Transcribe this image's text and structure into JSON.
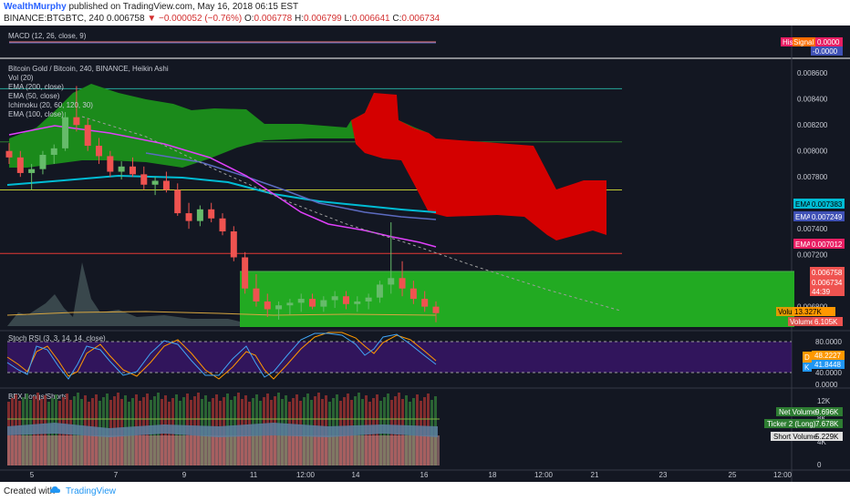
{
  "header": {
    "user": "WealthMurphy",
    "published": "published on TradingView.com, May 16, 2018 06:15 EST",
    "symbol": "BINANCE:BTGBTC, 240",
    "price": "0.006758",
    "change": "−0.000052 (−0.76%)",
    "o_label": "O:",
    "o_value": "0.006778",
    "h_label": "H:",
    "h_value": "0.006799",
    "l_label": "L:",
    "l_value": "0.006641",
    "c_label": "C:",
    "c_value": "0.006734"
  },
  "panes": {
    "macd": {
      "title": "MACD (12, 26, close, 9)",
      "hist_label": "His",
      "signal_label": "Signal",
      "value1": "0.0000",
      "value2": "-0.0000"
    },
    "main": {
      "legend": [
        "Bitcoin Gold / Bitcoin, 240, BINANCE, Heikin Ashi",
        "Vol (20)",
        "EMA (200, close)",
        "EMA (50, close)",
        "Ichimoku (20, 60, 120, 30)",
        "EMA (100, close)"
      ],
      "price_ticks": [
        "0.008600",
        "0.008400",
        "0.008200",
        "0.008000",
        "0.007800",
        "0.007600",
        "0.007400",
        "0.007200",
        "0.006800"
      ],
      "tags": [
        {
          "label": "EMA",
          "value": "0.007383",
          "color": "#00bcd4",
          "text": "#000000"
        },
        {
          "label": "EMA",
          "value": "0.007249",
          "color": "#3f51b5",
          "text": "#ffffff"
        },
        {
          "label": "EMA",
          "value": "0.007012",
          "color": "#e91e63",
          "text": "#ffffff"
        },
        {
          "label": "",
          "value": "0.006758",
          "color": "#ef5350",
          "text": "#ffffff"
        },
        {
          "label": "",
          "value": "0.006734",
          "color": "#ef5350",
          "text": "#ffffff"
        },
        {
          "label": "",
          "value": "44:39",
          "color": "#ef5350",
          "text": "#ffffff"
        }
      ],
      "volume_ma_label": "Volume MA",
      "volume_ma_value": "13.327K",
      "volume_label": "Volume",
      "volume_value": "6.105K"
    },
    "stoch": {
      "title": "Stoch RSI (3, 3, 14, 14, close)",
      "ticks": [
        "80.0000",
        "40.0000",
        "0.0000"
      ],
      "k_label": "D",
      "k_value": "48.2227",
      "d_label": "K",
      "d_value": "41.8448"
    },
    "bfx": {
      "title": "BFX Longs/Shorts",
      "ticks": [
        "12K",
        "8K",
        "4K",
        "0"
      ],
      "net_label": "Net Volume",
      "net_value": "9.696K",
      "ticker_label": "Ticker 2 (Long)",
      "ticker_value": "7.678K",
      "short_label": "Short Volume",
      "short_value": "5.229K"
    }
  },
  "time_axis": [
    "5",
    "7",
    "9",
    "11",
    "12:00",
    "14",
    "16",
    "18",
    "12:00",
    "21",
    "23",
    "25",
    "12:00"
  ],
  "footer": {
    "created": "Created with",
    "brand": "TradingView"
  },
  "colors": {
    "background": "#131722",
    "cloud_green": "#1b8a1b",
    "cloud_red": "#d40000",
    "zone_green": "#22aa22",
    "ema200": "#00bcd4",
    "ema50": "#e91e63",
    "ema100": "#5c6bc0"
  },
  "chart_data": {
    "type": "candlestick",
    "title": "Bitcoin Gold / Bitcoin, 240, BINANCE, Heikin Ashi",
    "ylim": [
      0.00665,
      0.0087
    ],
    "horizontal_levels": [
      0.00848,
      0.00807,
      0.0077,
      0.00721
    ],
    "ohlc_approx": [
      [
        0.008,
        0.00806,
        0.0079,
        0.00795
      ],
      [
        0.00795,
        0.008,
        0.0078,
        0.00783
      ],
      [
        0.00783,
        0.0079,
        0.0077,
        0.00786
      ],
      [
        0.00786,
        0.008,
        0.00782,
        0.00797
      ],
      [
        0.00797,
        0.00805,
        0.0079,
        0.00802
      ],
      [
        0.00802,
        0.0083,
        0.008,
        0.00826
      ],
      [
        0.00826,
        0.0085,
        0.00815,
        0.0082
      ],
      [
        0.0082,
        0.00825,
        0.008,
        0.00804
      ],
      [
        0.00804,
        0.0081,
        0.0079,
        0.00796
      ],
      [
        0.00796,
        0.008,
        0.0078,
        0.00784
      ],
      [
        0.00784,
        0.00792,
        0.00778,
        0.00788
      ],
      [
        0.00788,
        0.00795,
        0.0078,
        0.00782
      ],
      [
        0.00782,
        0.00788,
        0.0077,
        0.00774
      ],
      [
        0.00774,
        0.0078,
        0.00766,
        0.00777
      ],
      [
        0.00777,
        0.00784,
        0.00768,
        0.0077
      ],
      [
        0.0077,
        0.00775,
        0.0075,
        0.00752
      ],
      [
        0.00752,
        0.0076,
        0.0074,
        0.00746
      ],
      [
        0.00746,
        0.00758,
        0.00742,
        0.00755
      ],
      [
        0.00755,
        0.0076,
        0.00745,
        0.00748
      ],
      [
        0.00748,
        0.00752,
        0.00735,
        0.00738
      ],
      [
        0.00738,
        0.00742,
        0.00715,
        0.00718
      ],
      [
        0.00718,
        0.00722,
        0.0069,
        0.00694
      ],
      [
        0.00694,
        0.00705,
        0.0068,
        0.00684
      ],
      [
        0.00684,
        0.0069,
        0.00672,
        0.00678
      ],
      [
        0.00678,
        0.00684,
        0.0067,
        0.00681
      ],
      [
        0.00681,
        0.00686,
        0.00674,
        0.00683
      ],
      [
        0.00683,
        0.0069,
        0.00676,
        0.00686
      ],
      [
        0.00686,
        0.0069,
        0.00678,
        0.0068
      ],
      [
        0.0068,
        0.00688,
        0.00676,
        0.00685
      ],
      [
        0.00685,
        0.00692,
        0.00679,
        0.00688
      ],
      [
        0.00688,
        0.00692,
        0.00678,
        0.00682
      ],
      [
        0.00682,
        0.00688,
        0.00676,
        0.00684
      ],
      [
        0.00684,
        0.0069,
        0.00678,
        0.00687
      ],
      [
        0.00687,
        0.007,
        0.00683,
        0.00697
      ],
      [
        0.00697,
        0.00745,
        0.0069,
        0.00702
      ],
      [
        0.00702,
        0.00715,
        0.00688,
        0.00694
      ],
      [
        0.00694,
        0.007,
        0.00682,
        0.00686
      ],
      [
        0.00686,
        0.00692,
        0.00676,
        0.0068
      ],
      [
        0.0068,
        0.00684,
        0.00668,
        0.00675
      ]
    ]
  }
}
